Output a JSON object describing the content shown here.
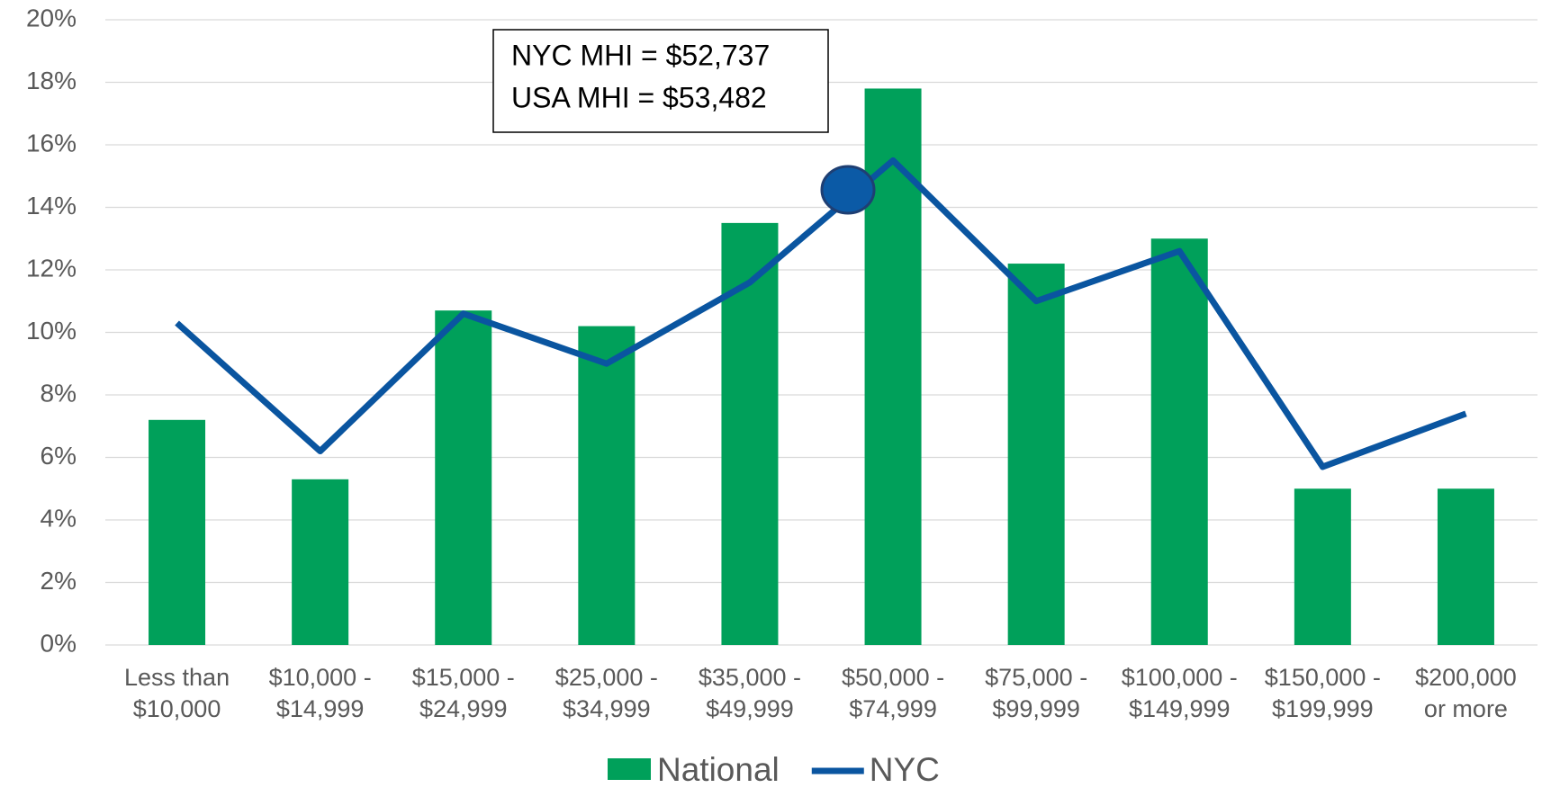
{
  "chart_data": {
    "type": "bar_line",
    "categories": [
      [
        "Less than",
        "$10,000"
      ],
      [
        "$10,000 -",
        "$14,999"
      ],
      [
        "$15,000 -",
        "$24,999"
      ],
      [
        "$25,000 -",
        "$34,999"
      ],
      [
        "$35,000 -",
        "$49,999"
      ],
      [
        "$50,000 -",
        "$74,999"
      ],
      [
        "$75,000 -",
        "$99,999"
      ],
      [
        "$100,000 -",
        "$149,999"
      ],
      [
        "$150,000 -",
        "$199,999"
      ],
      [
        "$200,000",
        "or more"
      ]
    ],
    "series": [
      {
        "name": "National",
        "type": "bar",
        "color": "#00a05a",
        "values": [
          7.2,
          5.3,
          10.7,
          10.2,
          13.5,
          17.8,
          12.2,
          13.0,
          5.0,
          5.0
        ]
      },
      {
        "name": "NYC",
        "type": "line",
        "color": "#0a55a0",
        "values": [
          10.3,
          6.2,
          10.6,
          9.0,
          11.6,
          15.5,
          11.0,
          12.6,
          5.7,
          7.4
        ]
      }
    ],
    "ylim": [
      0,
      20
    ],
    "yticks": [
      {
        "value": 0,
        "label": "0%"
      },
      {
        "value": 2,
        "label": "2%"
      },
      {
        "value": 4,
        "label": "4%"
      },
      {
        "value": 6,
        "label": "6%"
      },
      {
        "value": 8,
        "label": "8%"
      },
      {
        "value": 10,
        "label": "10%"
      },
      {
        "value": 12,
        "label": "12%"
      },
      {
        "value": 14,
        "label": "14%"
      },
      {
        "value": 16,
        "label": "16%"
      },
      {
        "value": 18,
        "label": "18%"
      },
      {
        "value": 20,
        "label": "20%"
      }
    ],
    "grid": true,
    "legend": "bottom",
    "annotations": [
      "NYC MHI = $52,737",
      "USA MHI = $53,482"
    ]
  }
}
